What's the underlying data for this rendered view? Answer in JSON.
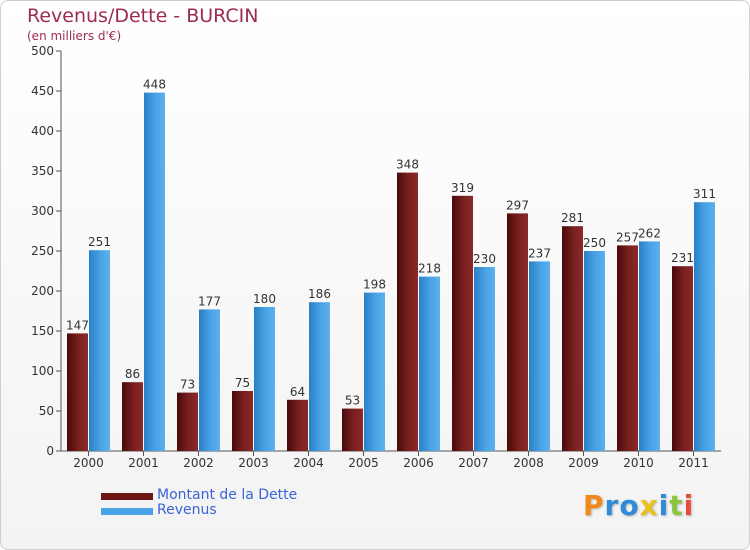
{
  "chart_data": {
    "type": "bar",
    "title": "Revenus/Dette - BURCIN",
    "subtitle": "(en milliers d'€)",
    "categories": [
      "2000",
      "2001",
      "2002",
      "2003",
      "2004",
      "2005",
      "2006",
      "2007",
      "2008",
      "2009",
      "2010",
      "2011"
    ],
    "series": [
      {
        "name": "Montant de la Dette",
        "color": "#6e1515",
        "values": [
          147,
          86,
          73,
          75,
          64,
          53,
          348,
          319,
          297,
          281,
          257,
          231
        ]
      },
      {
        "name": "Revenus",
        "color": "#4aa3e6",
        "values": [
          251,
          448,
          177,
          180,
          186,
          198,
          218,
          230,
          237,
          250,
          262,
          311
        ]
      }
    ],
    "ylim": [
      0,
      500
    ],
    "yticks": [
      0,
      50,
      100,
      150,
      200,
      250,
      300,
      350,
      400,
      450,
      500
    ],
    "grid": false,
    "legend_position": "bottom-left"
  },
  "logo": {
    "letters": [
      "P",
      "r",
      "o",
      "x",
      "i",
      "t",
      "i"
    ],
    "colors": [
      "#f08a1c",
      "#2f8ad8",
      "#2f8ad8",
      "#e8c21c",
      "#2f8ad8",
      "#8cc63f",
      "#e74c3c"
    ]
  }
}
